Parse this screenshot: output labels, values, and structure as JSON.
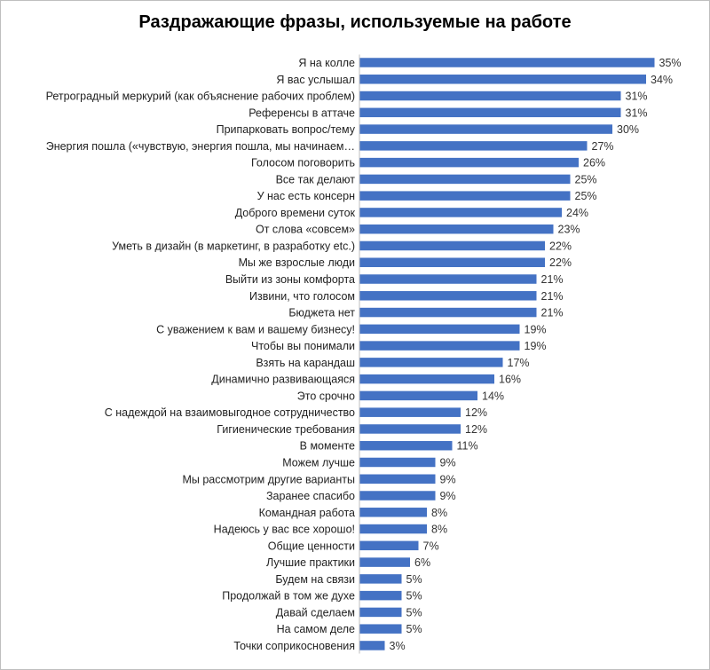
{
  "chart_data": {
    "type": "bar",
    "orientation": "horizontal",
    "title": "Раздражающие фразы, используемые на работе",
    "xlabel": "",
    "ylabel": "",
    "value_format": "percent",
    "grid": false,
    "bar_color": "#4472C4",
    "categories": [
      "Я на колле",
      "Я вас услышал",
      "Ретроградный меркурий (как объяснение рабочих проблем)",
      "Референсы в аттаче",
      "Припарковать вопрос/тему",
      "Энергия пошла («чувствую, энергия пошла, мы начинаем…",
      "Голосом поговорить",
      "Все так делают",
      "У нас есть консерн",
      "Доброго времени суток",
      "От слова «совсем»",
      "Уметь в дизайн (в маркетинг, в разработку etc.)",
      "Мы же взрослые люди",
      "Выйти из зоны комфорта",
      "Извини, что голосом",
      "Бюджета нет",
      "С уважением к вам и вашему бизнесу!",
      "Чтобы вы понимали",
      "Взять на карандаш",
      "Динамично развивающаяся",
      "Это срочно",
      "С надеждой на взаимовыгодное сотрудничество",
      "Гигиенические требования",
      "В моменте",
      "Можем лучше",
      "Мы рассмотрим другие варианты",
      "Заранее спасибо",
      "Командная работа",
      "Надеюсь у вас все хорошо!",
      "Общие ценности",
      "Лучшие практики",
      "Будем на связи",
      "Продолжай в том же духе",
      "Давай сделаем",
      "На самом деле",
      "Точки соприкосновения"
    ],
    "values": [
      35,
      34,
      31,
      31,
      30,
      27,
      26,
      25,
      25,
      24,
      23,
      22,
      22,
      21,
      21,
      21,
      19,
      19,
      17,
      16,
      14,
      12,
      12,
      11,
      9,
      9,
      9,
      8,
      8,
      7,
      6,
      5,
      5,
      5,
      5,
      3
    ]
  }
}
